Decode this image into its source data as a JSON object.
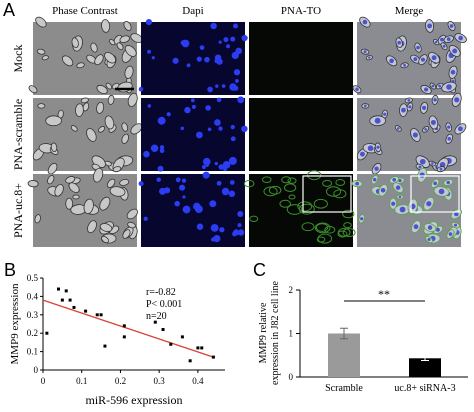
{
  "panel_a": {
    "label": "A",
    "columns": [
      "Phase Contrast",
      "Dapi",
      "PNA-TO",
      "Merge"
    ],
    "rows": [
      "Mock",
      "PNA-scramble",
      "PNA-uc.8+"
    ]
  },
  "chart_data": [
    {
      "type": "scatter",
      "label": "B",
      "x_label": "miR-596 expression",
      "y_label": "MMP9 expression",
      "annotations": [
        "r=-0.82",
        "P< 0.001",
        "n=20"
      ],
      "x": [
        0.01,
        0.04,
        0.05,
        0.06,
        0.07,
        0.08,
        0.11,
        0.14,
        0.15,
        0.16,
        0.21,
        0.21,
        0.29,
        0.31,
        0.33,
        0.36,
        0.38,
        0.4,
        0.41,
        0.44
      ],
      "y": [
        0.2,
        0.44,
        0.38,
        0.43,
        0.38,
        0.34,
        0.32,
        0.3,
        0.3,
        0.13,
        0.24,
        0.18,
        0.26,
        0.22,
        0.14,
        0.18,
        0.05,
        0.12,
        0.12,
        0.07
      ],
      "color": "#000000",
      "xlim": [
        0,
        0.47
      ],
      "xticks": [
        0,
        0.1,
        0.2,
        0.3,
        0.4
      ],
      "ylim": [
        0,
        0.5
      ],
      "yticks": [
        0,
        0.1,
        0.2,
        0.3,
        0.4,
        0.5
      ],
      "trendline": {
        "x": [
          0,
          0.44
        ],
        "y": [
          0.38,
          0.07
        ],
        "color": "#d9432f"
      }
    },
    {
      "type": "bar",
      "label": "C",
      "y_label": [
        "MMP9 relative",
        "expression in J82 cell line"
      ],
      "categories": [
        "Scramble",
        "uc.8+ siRNA-3"
      ],
      "values": [
        1.0,
        0.43
      ],
      "errors": [
        0.12,
        0.05
      ],
      "colors": [
        "#9a9a9a",
        "#000000"
      ],
      "ylim": [
        0,
        2
      ],
      "yticks": [
        0,
        1,
        2
      ],
      "significance": "**"
    }
  ]
}
